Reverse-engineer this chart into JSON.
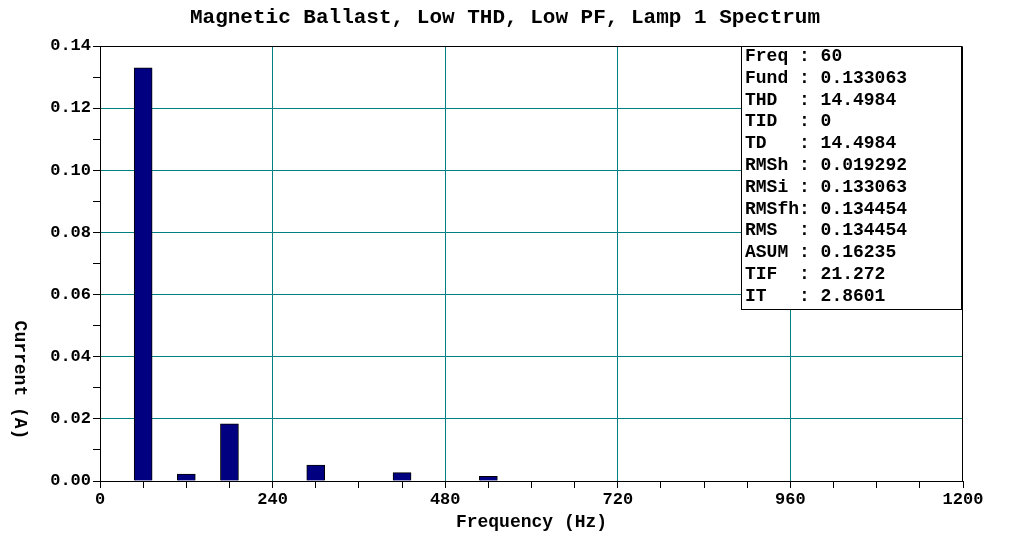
{
  "chart_data": {
    "type": "bar",
    "title": "Magnetic Ballast, Low THD, Low PF, Lamp 1 Spectrum",
    "xlabel": "Frequency (Hz)",
    "ylabel": "Current (A)",
    "x": [
      60,
      120,
      180,
      300,
      420,
      540
    ],
    "values": [
      0.133,
      0.0022,
      0.0184,
      0.0051,
      0.0027,
      0.0015
    ],
    "color": "#000080",
    "xlim": [
      0,
      1200
    ],
    "xticks": [
      0,
      {
        "value": 60,
        "label": null
      },
      {
        "value": 120,
        "label": null
      },
      {
        "value": 180,
        "label": null
      },
      240,
      {
        "value": 300,
        "label": null
      },
      {
        "value": 360,
        "label": null
      },
      {
        "value": 420,
        "label": null
      },
      480,
      {
        "value": 540,
        "label": null
      },
      {
        "value": 600,
        "label": null
      },
      {
        "value": 660,
        "label": null
      },
      720,
      {
        "value": 780,
        "label": null
      },
      {
        "value": 840,
        "label": null
      },
      {
        "value": 900,
        "label": null
      },
      960,
      {
        "value": 1020,
        "label": null
      },
      {
        "value": 1080,
        "label": null
      },
      {
        "value": 1140,
        "label": null
      },
      1200
    ],
    "ylim": [
      0,
      0.14
    ],
    "yticks": [
      {
        "value": 0,
        "label": "0.00"
      },
      {
        "value": 0.01,
        "label": null
      },
      {
        "value": 0.02,
        "label": "0.02"
      },
      {
        "value": 0.03,
        "label": null
      },
      {
        "value": 0.04,
        "label": "0.04"
      },
      {
        "value": 0.05,
        "label": null
      },
      {
        "value": 0.06,
        "label": "0.06"
      },
      {
        "value": 0.07,
        "label": null
      },
      {
        "value": 0.08,
        "label": "0.08"
      },
      {
        "value": 0.09,
        "label": null
      },
      {
        "value": 0.1,
        "label": "0.10"
      },
      {
        "value": 0.11,
        "label": null
      },
      {
        "value": 0.12,
        "label": "0.12"
      },
      {
        "value": 0.13,
        "label": null
      },
      {
        "value": 0.14,
        "label": "0.14"
      }
    ],
    "grid": true,
    "legend": false,
    "annotations": [
      "Freq : 60",
      "Fund : 0.133063",
      "THD  : 14.4984",
      "TID  : 0",
      "TD   : 14.4984",
      "RMSh : 0.019292",
      "RMSi : 0.133063",
      "RMSfh: 0.134454",
      "RMS  : 0.134454",
      "ASUM : 0.16235",
      "TIF  : 21.272",
      "IT   : 2.8601"
    ]
  }
}
